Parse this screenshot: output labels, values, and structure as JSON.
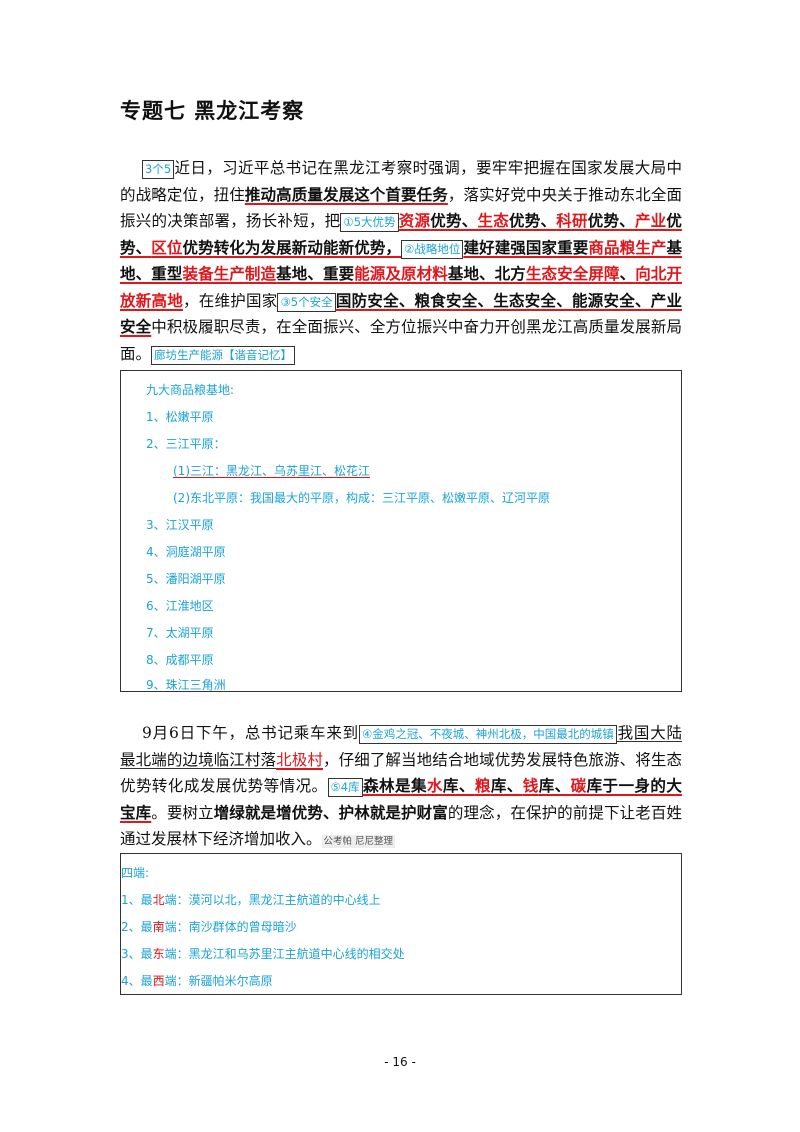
{
  "title": "专题七 黑龙江考察",
  "para1": {
    "tag_3": "3个5",
    "t1": "近日，习近平总书记在黑龙江考察时强调，要牢牢把握在国家发展大局中的战略定位，扭住",
    "b1": "推动高质量发展这个首要任务",
    "t2": "，落实好党中央关于推动东北全面振兴的决策部署，扬长补短，把",
    "tag_5adv": "①5大优势",
    "r1": "资源",
    "b2": "优势、",
    "r2": "生态",
    "b3": "优势、",
    "r3": "科研",
    "b4": "优势、",
    "r4": "产业",
    "b5": "优势、",
    "r5": "区位",
    "b6": "优势转化为发展新动能新优势，",
    "tag_strategic": "②战略地位",
    "b7": "建好建强国家重要",
    "r6": "商品粮生产",
    "b8": "基地、重型",
    "r7": "装备生产制造",
    "b9": "基地、重要",
    "r8": "能源及原材料",
    "b10": "基地、北方",
    "r9": "生态安全屏障",
    "b11": "、",
    "r10": "向北开放新高地",
    "t3": "，在维护国家",
    "tag_security": "③5个安全",
    "b12": "国防安全、粮食安全、生态安全、能源安全、产业安全",
    "t4": "中积极履职尽责，在全面振兴、全方位振兴中奋力开创黑龙江高质量发展新局面。",
    "tag_mnemonic": "廊坊生产能源【谐音记忆】"
  },
  "box1": {
    "heading": "九大商品粮基地:",
    "items": [
      "1、松嫩平原",
      "2、三江平原：",
      "(1)三江：黑龙江、乌苏里江、松花江",
      "(2)东北平原：我国最大的平原，构成：三江平原、松嫩平原、辽河平原",
      "3、江汉平原",
      "4、洞庭湖平原",
      "5、潘阳湖平原",
      "6、江淮地区",
      "7、太湖平原",
      "8、成都平原",
      "9、珠江三角洲"
    ]
  },
  "para2": {
    "t1": "9月6日下午，总书记乘车来到",
    "tag_4": "④金鸡之冠、不夜城、神州北极，中国最北的城镇",
    "t2": "我国大陆最北端的边境临江村落",
    "t3": "北极村",
    "t4": "，仔细了解当地结合地域优势发展特色旅游、将生态优势转化成发展优势等情况。",
    "tag_5": "⑤4库",
    "b1": "森林是集",
    "r1": "水",
    "b2": "库、",
    "r2": "粮",
    "b3": "库、",
    "r3": "钱",
    "b4": "库、",
    "r4": "碳",
    "b5": "库于一身的大宝库",
    "t5": "。要树立",
    "b6": "增绿就是增优势、护林就是护财富",
    "t6": "的理念，在保护的前提下让老百姓通过发展林下经济增加收入。",
    "note": "公考帕 尼尼整理"
  },
  "box2": {
    "heading": "四端:",
    "items": [
      {
        "pre": "1、最",
        "hl": "北",
        "post": "端：漠河以北，黑龙江主航道的中心线上"
      },
      {
        "pre": "2、最",
        "hl": "南",
        "post": "端：南沙群体的曾母暗沙"
      },
      {
        "pre": "3、最",
        "hl": "东",
        "post": "端：黑龙江和乌苏里江主航道中心线的相交处"
      },
      {
        "pre": "4、最",
        "hl": "西",
        "post": "端：新疆帕米尔高原"
      }
    ]
  },
  "footer": "- 16 -",
  "colors": {
    "accent_blue": "#1ba3d8",
    "red": "#e0161b"
  }
}
